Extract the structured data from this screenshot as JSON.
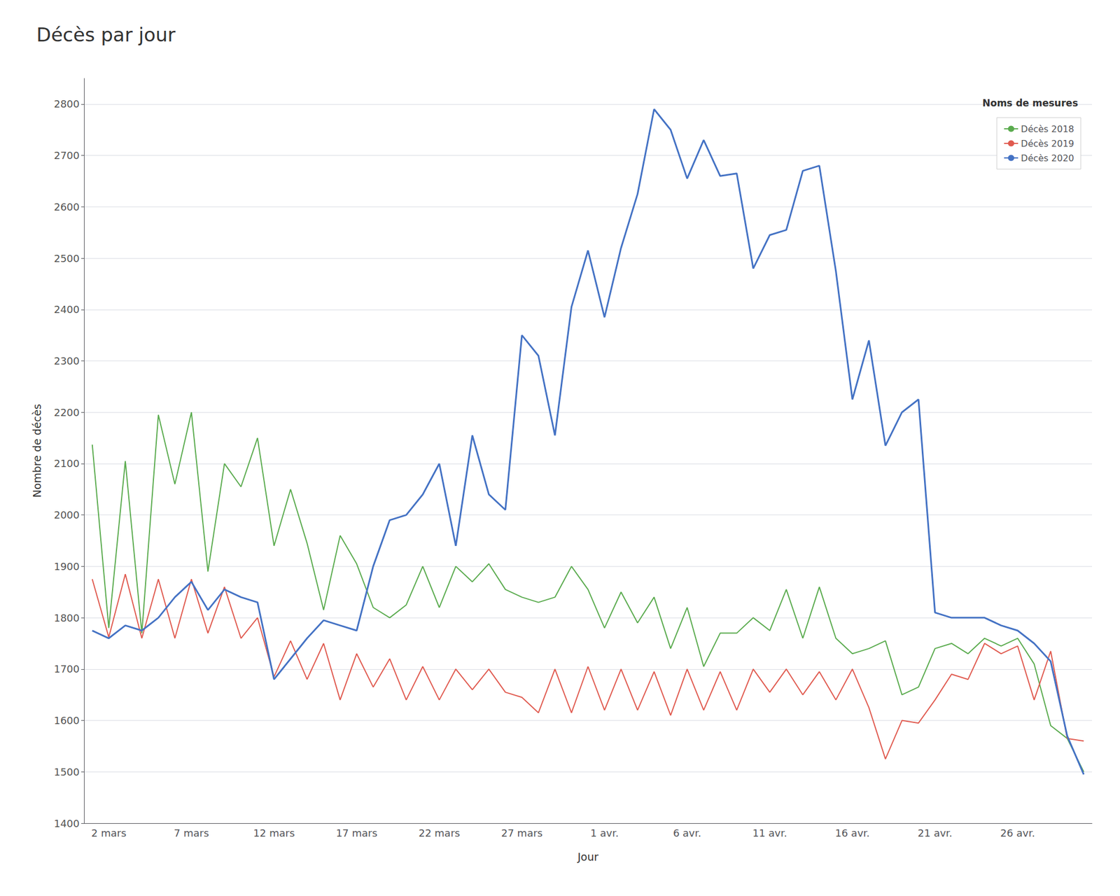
{
  "chart_data": {
    "type": "line",
    "title": "Décès par jour",
    "xlabel": "Jour",
    "ylabel": "Nombre de décès",
    "legend_title": "Noms de mesures",
    "legend": "upper right",
    "grid": true,
    "categories": [
      null,
      "2 mars",
      null,
      null,
      null,
      null,
      "7 mars",
      null,
      null,
      null,
      null,
      "12 mars",
      null,
      null,
      null,
      null,
      "17 mars",
      null,
      null,
      null,
      null,
      "22 mars",
      null,
      null,
      null,
      null,
      "27 mars",
      null,
      null,
      null,
      null,
      "1 avr.",
      null,
      null,
      null,
      null,
      "6 avr.",
      null,
      null,
      null,
      null,
      "11 avr.",
      null,
      null,
      null,
      null,
      "16 avr.",
      null,
      null,
      null,
      null,
      "21 avr.",
      null,
      null,
      null,
      null,
      "26 avr.",
      null,
      null,
      null,
      null
    ],
    "ylim": [
      1400,
      2850
    ],
    "yticks": [
      1400,
      1500,
      1600,
      1700,
      1800,
      1900,
      2000,
      2100,
      2200,
      2300,
      2400,
      2500,
      2600,
      2700,
      2800
    ],
    "series": [
      {
        "name": "Décès 2018",
        "color": "#5aab4e",
        "values": [
          2137,
          1780,
          2105,
          1770,
          2195,
          2060,
          2200,
          1890,
          2100,
          2055,
          2150,
          1940,
          2050,
          1945,
          1815,
          1960,
          1905,
          1820,
          1800,
          1825,
          1900,
          1820,
          1900,
          1870,
          1905,
          1855,
          1840,
          1830,
          1840,
          1900,
          1855,
          1780,
          1850,
          1790,
          1840,
          1740,
          1820,
          1705,
          1770,
          1770,
          1800,
          1775,
          1855,
          1760,
          1860,
          1760,
          1730,
          1740,
          1755,
          1650,
          1665,
          1740,
          1750,
          1730,
          1760,
          1745,
          1760,
          1710,
          1590,
          1565,
          1500
        ]
      },
      {
        "name": "Décès 2019",
        "color": "#e05a4f",
        "values": [
          1875,
          1762,
          1885,
          1760,
          1875,
          1760,
          1875,
          1770,
          1860,
          1760,
          1800,
          1685,
          1755,
          1680,
          1750,
          1640,
          1730,
          1665,
          1720,
          1640,
          1705,
          1640,
          1700,
          1660,
          1700,
          1655,
          1645,
          1615,
          1700,
          1615,
          1705,
          1620,
          1700,
          1620,
          1695,
          1610,
          1700,
          1620,
          1695,
          1620,
          1700,
          1655,
          1700,
          1650,
          1695,
          1640,
          1700,
          1625,
          1525,
          1600,
          1595,
          1640,
          1690,
          1680,
          1750,
          1730,
          1745,
          1640,
          1735,
          1565,
          1560
        ]
      },
      {
        "name": "Décès 2020",
        "color": "#4472c4",
        "values": [
          1775,
          1760,
          1785,
          1775,
          1800,
          1840,
          1870,
          1815,
          1855,
          1840,
          1830,
          1680,
          1720,
          1760,
          1795,
          1785,
          1775,
          1900,
          1990,
          2000,
          2040,
          2100,
          1940,
          2155,
          2040,
          2010,
          2350,
          2310,
          2155,
          2405,
          2515,
          2385,
          2520,
          2625,
          2790,
          2750,
          2655,
          2730,
          2660,
          2665,
          2480,
          2545,
          2555,
          2670,
          2680,
          2475,
          2225,
          2340,
          2135,
          2200,
          2225,
          1810,
          1800,
          1800,
          1800,
          1785,
          1775,
          1750,
          1715,
          1570,
          1495
        ]
      }
    ]
  }
}
